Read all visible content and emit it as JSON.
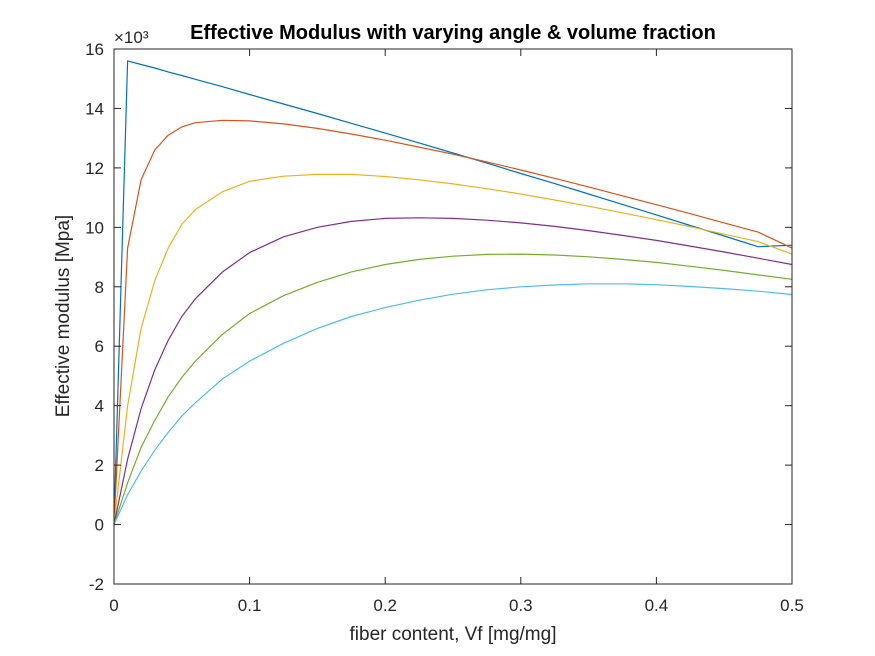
{
  "chart_data": {
    "type": "line",
    "title": "Effective Modulus with varying angle & volume fraction",
    "xlabel": "fiber content, Vf [mg/mg]",
    "ylabel": "Effective modulus [Mpa]",
    "xlim": [
      0,
      0.5
    ],
    "ylim": [
      -2,
      16
    ],
    "y_exponent_label": "×10³",
    "x_ticks": [
      0,
      0.1,
      0.2,
      0.3,
      0.4,
      0.5
    ],
    "x_tick_labels": [
      "0",
      "0.1",
      "0.2",
      "0.3",
      "0.4",
      "0.5"
    ],
    "y_ticks": [
      -2,
      0,
      2,
      4,
      6,
      8,
      10,
      12,
      14,
      16
    ],
    "y_tick_labels": [
      "-2",
      "0",
      "2",
      "4",
      "6",
      "8",
      "10",
      "12",
      "14",
      "16"
    ],
    "grid": false,
    "box": true,
    "x": [
      0,
      0.01,
      0.02,
      0.03,
      0.04,
      0.05,
      0.06,
      0.08,
      0.1,
      0.125,
      0.15,
      0.175,
      0.2,
      0.225,
      0.25,
      0.275,
      0.3,
      0.325,
      0.35,
      0.375,
      0.4,
      0.425,
      0.45,
      0.475,
      0.5
    ],
    "series": [
      {
        "color": "#0072BD",
        "values": [
          0,
          15.6,
          15.48,
          15.36,
          15.23,
          15.11,
          14.98,
          14.73,
          14.47,
          14.15,
          13.83,
          13.5,
          13.17,
          12.84,
          12.5,
          12.16,
          11.81,
          11.47,
          11.12,
          10.77,
          10.42,
          10.06,
          9.71,
          9.35,
          9.4
        ]
      },
      {
        "color": "#D95319",
        "values": [
          0,
          9.3,
          11.6,
          12.6,
          13.1,
          13.38,
          13.52,
          13.6,
          13.58,
          13.48,
          13.33,
          13.14,
          12.93,
          12.7,
          12.46,
          12.2,
          11.93,
          11.65,
          11.36,
          11.06,
          10.76,
          10.46,
          10.15,
          9.84,
          9.3
        ]
      },
      {
        "color": "#EDB120",
        "values": [
          0,
          4.0,
          6.6,
          8.2,
          9.3,
          10.1,
          10.6,
          11.2,
          11.55,
          11.72,
          11.78,
          11.78,
          11.71,
          11.6,
          11.46,
          11.3,
          11.12,
          10.92,
          10.71,
          10.49,
          10.26,
          10.02,
          9.77,
          9.52,
          9.1
        ]
      },
      {
        "color": "#7E2F8E",
        "values": [
          0,
          2.2,
          3.9,
          5.2,
          6.2,
          7.0,
          7.6,
          8.5,
          9.15,
          9.68,
          10.0,
          10.2,
          10.3,
          10.32,
          10.3,
          10.24,
          10.15,
          10.03,
          9.89,
          9.73,
          9.56,
          9.37,
          9.17,
          8.96,
          8.75
        ]
      },
      {
        "color": "#77AC30",
        "values": [
          0,
          1.4,
          2.6,
          3.5,
          4.3,
          4.95,
          5.5,
          6.4,
          7.1,
          7.7,
          8.15,
          8.5,
          8.75,
          8.92,
          9.03,
          9.09,
          9.1,
          9.07,
          9.01,
          8.92,
          8.82,
          8.69,
          8.55,
          8.4,
          8.25
        ]
      },
      {
        "color": "#4DBEEE",
        "values": [
          0,
          1.0,
          1.8,
          2.5,
          3.1,
          3.65,
          4.1,
          4.9,
          5.5,
          6.1,
          6.6,
          7.0,
          7.3,
          7.55,
          7.75,
          7.9,
          8.0,
          8.06,
          8.1,
          8.1,
          8.07,
          8.01,
          7.94,
          7.85,
          7.74
        ]
      }
    ]
  }
}
